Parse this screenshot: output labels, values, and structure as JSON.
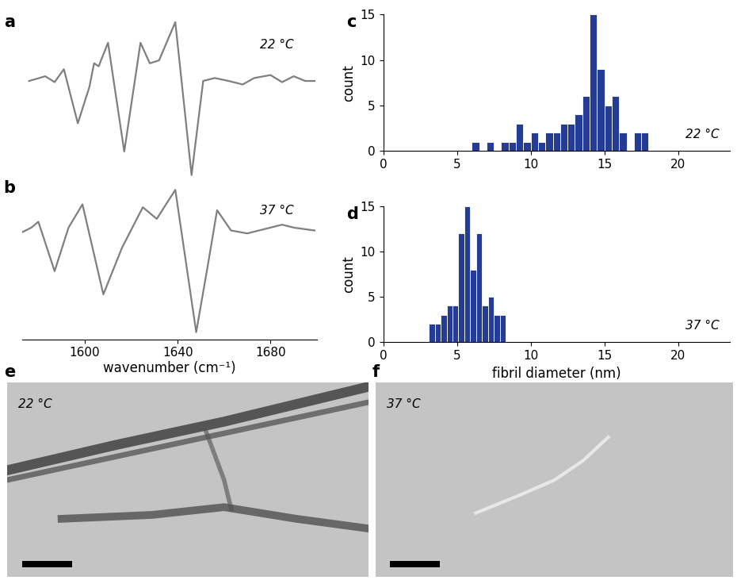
{
  "chart_data": [
    {
      "type": "line",
      "panel_label": "a",
      "annotation": "22 °C",
      "x": [
        1576,
        1583,
        1587,
        1591,
        1597,
        1602,
        1604,
        1606,
        1610,
        1617,
        1624,
        1628,
        1632,
        1639,
        1646,
        1651,
        1656,
        1662,
        1668,
        1673,
        1680,
        1685,
        1690,
        1695,
        1699
      ],
      "values": [
        0,
        0.08,
        -0.02,
        0.2,
        -0.72,
        -0.1,
        0.3,
        0.25,
        0.65,
        -1.2,
        0.65,
        0.3,
        0.35,
        1.0,
        -1.6,
        0.0,
        0.05,
        0.0,
        -0.06,
        0.05,
        0.1,
        -0.02,
        0.08,
        0.0,
        0.0
      ],
      "color": "#7f7f7f",
      "tick_labels": false
    },
    {
      "type": "line",
      "panel_label": "b",
      "annotation": "37 °C",
      "x": [
        1573,
        1577,
        1580,
        1587,
        1593,
        1599,
        1608,
        1616,
        1625,
        1631,
        1639,
        1648,
        1653,
        1657,
        1663,
        1670,
        1677,
        1685,
        1690,
        1699
      ],
      "values": [
        -0.03,
        0.05,
        0.15,
        -0.7,
        0.05,
        0.45,
        -1.1,
        -0.3,
        0.4,
        0.2,
        0.7,
        -1.75,
        -0.6,
        0.35,
        0.0,
        -0.05,
        0.02,
        0.1,
        0.05,
        0.0
      ],
      "color": "#7f7f7f",
      "xlim": [
        1573,
        1700
      ],
      "xticks": [
        1600,
        1640,
        1680
      ],
      "x_label": "wavenumber (cm⁻¹)",
      "tick_labels": "x"
    },
    {
      "type": "histogram",
      "panel_label": "c",
      "annotation": "22 °C",
      "bins": [
        6.0,
        6.5,
        7.0,
        7.5,
        8.0,
        8.5,
        9.0,
        9.5,
        10.0,
        10.5,
        11.0,
        11.5,
        12.0,
        12.5,
        13.0,
        13.5,
        14.0,
        14.5,
        15.0,
        15.5,
        16.0,
        16.5,
        17.0,
        17.5,
        18.0
      ],
      "counts": [
        1,
        0,
        1,
        0,
        1,
        1,
        3,
        1,
        2,
        1,
        2,
        2,
        3,
        3,
        4,
        6,
        15,
        9,
        5,
        6,
        2,
        0,
        2,
        2
      ],
      "color": "#253c94",
      "xlim": [
        0,
        23.5
      ],
      "xticks": [
        0,
        5,
        10,
        15,
        20
      ],
      "ylim": [
        0,
        15
      ],
      "yticks": [
        0,
        5,
        10,
        15
      ],
      "y_label": "count"
    },
    {
      "type": "histogram",
      "panel_label": "d",
      "annotation": "37 °C",
      "bins": [
        3.1,
        3.5,
        3.9,
        4.3,
        4.7,
        5.1,
        5.5,
        5.9,
        6.3,
        6.7,
        7.1,
        7.5,
        7.9,
        8.3
      ],
      "counts": [
        2,
        2,
        3,
        4,
        4,
        12,
        15,
        8,
        12,
        4,
        5,
        3,
        3
      ],
      "color": "#253c94",
      "xlim": [
        0,
        23.5
      ],
      "xticks": [
        0,
        5,
        10,
        15,
        20
      ],
      "ylim": [
        0,
        15
      ],
      "yticks": [
        0,
        5,
        10,
        15
      ],
      "y_label": "count",
      "x_label": "fibril diameter (nm)"
    }
  ],
  "images": [
    {
      "panel_label": "e",
      "annotation": "22 °C"
    },
    {
      "panel_label": "f",
      "annotation": "37 °C"
    }
  ]
}
